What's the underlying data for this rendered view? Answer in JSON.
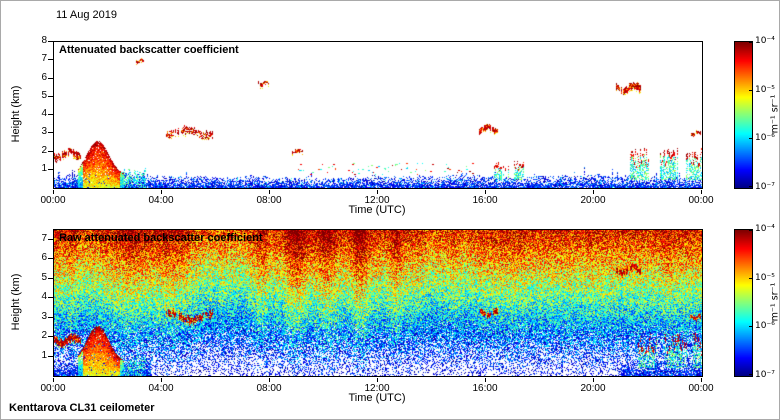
{
  "figure": {
    "date_label": "11 Aug 2019",
    "footer": "Kenttarova CL31 ceilometer",
    "xlabel": "Time (UTC)",
    "ylabel": "Height (km)",
    "x_ticks": [
      "00:00",
      "04:00",
      "08:00",
      "12:00",
      "16:00",
      "20:00",
      "00:00"
    ],
    "colorbar": {
      "unit": "m⁻¹ sr⁻¹",
      "ticks": [
        "10⁻⁴",
        "10⁻⁵",
        "10⁻⁶",
        "10⁻⁷"
      ],
      "colormap": "jet",
      "scale": "log",
      "range": [
        1e-07,
        0.0001
      ]
    }
  },
  "chart_data": [
    {
      "type": "heatmap",
      "title": "Attenuated backscatter coefficient",
      "xlabel": "Time (UTC)",
      "ylabel": "Height (km)",
      "x_range_hours": [
        0,
        24
      ],
      "ylim_km": [
        0,
        8
      ],
      "y_ticks": [
        1,
        2,
        3,
        4,
        5,
        6,
        7,
        8
      ],
      "value_unit": "m-1 sr-1",
      "value_range": [
        1e-07,
        0.0001
      ],
      "colormap": "jet",
      "background": "white below detection threshold",
      "features": [
        {
          "kind": "surface_band",
          "hours": [
            0,
            24
          ],
          "top_km_range": [
            0.45,
            0.95
          ],
          "density": 1,
          "note": "blue near-surface aerosol/noise band"
        },
        {
          "kind": "cloud",
          "hours": [
            0.0,
            1.0
          ],
          "km": [
            1.5,
            2.15
          ],
          "density": 0.75,
          "note": "low cloud streaks"
        },
        {
          "kind": "precip_column",
          "hours": [
            0.9,
            2.6
          ],
          "peak_km": 2.6,
          "note": "strong precipitation echo, yellow-red core"
        },
        {
          "kind": "green_patch",
          "hours": [
            2.45,
            3.4
          ],
          "top_km": 1.15,
          "note": "weak green returns after rain"
        },
        {
          "kind": "cloud",
          "hours": [
            3.05,
            3.35
          ],
          "km": [
            6.8,
            7.05
          ],
          "density": 0.8
        },
        {
          "kind": "cloud",
          "hours": [
            4.15,
            5.9
          ],
          "km": [
            2.7,
            3.35
          ],
          "density": 0.55,
          "note": "broken mid-level cloud"
        },
        {
          "kind": "cloud",
          "hours": [
            7.55,
            7.95
          ],
          "km": [
            5.55,
            5.85
          ],
          "density": 0.8
        },
        {
          "kind": "cloud",
          "hours": [
            8.8,
            9.25
          ],
          "km": [
            1.85,
            2.15
          ],
          "density": 0.6
        },
        {
          "kind": "fleck_field",
          "hours": [
            9.0,
            15.5
          ],
          "km": [
            0.75,
            1.35
          ],
          "count": 70,
          "note": "scattered boundary-layer flecks"
        },
        {
          "kind": "cloud",
          "hours": [
            15.75,
            16.45
          ],
          "km": [
            3.0,
            3.45
          ],
          "density": 0.85
        },
        {
          "kind": "mixed_low",
          "hours": [
            16.3,
            17.4
          ],
          "km": [
            0.75,
            1.55
          ]
        },
        {
          "kind": "cloud",
          "hours": [
            20.8,
            21.75
          ],
          "km": [
            5.15,
            5.75
          ],
          "density": 0.95,
          "note": "thick dark-red cloud"
        },
        {
          "kind": "mixed_low",
          "hours": [
            21.3,
            24.0
          ],
          "km": [
            0.75,
            2.3
          ],
          "note": "low broken cloud toward midnight"
        },
        {
          "kind": "cloud",
          "hours": [
            23.55,
            23.97
          ],
          "km": [
            2.85,
            3.15
          ],
          "density": 0.8
        }
      ]
    },
    {
      "type": "heatmap",
      "title": "Raw attenuated backscatter coefficient",
      "xlabel": "Time (UTC)",
      "ylabel": "Height (km)",
      "x_range_hours": [
        0,
        24
      ],
      "ylim_km": [
        0,
        7.5
      ],
      "y_ticks": [
        1,
        2,
        3,
        4,
        5,
        6,
        7
      ],
      "value_unit": "m-1 sr-1",
      "value_range": [
        1e-07,
        0.0001
      ],
      "colormap": "jet",
      "background": "dense speckle noise increasing with height (blue low, red aloft)",
      "noise": {
        "base_offset": -0.02,
        "gain_per_ynorm": 0.92,
        "jitter": 0.22,
        "white_prob_surface": 0.5
      },
      "streak_window_hours": [
        7.5,
        13.5
      ],
      "features": [
        {
          "kind": "surface_band",
          "hours": [
            0,
            3.6
          ],
          "top_km_range": [
            0.5,
            0.95
          ],
          "density": 0.95
        },
        {
          "kind": "precip_column",
          "hours": [
            0.9,
            2.6
          ],
          "peak_km": 2.6
        },
        {
          "kind": "green_patch",
          "hours": [
            2.45,
            3.4
          ],
          "top_km": 1.15
        },
        {
          "kind": "cloud",
          "hours": [
            0.0,
            1.0
          ],
          "km": [
            1.5,
            2.15
          ],
          "density": 0.8
        },
        {
          "kind": "cloud",
          "hours": [
            4.15,
            5.9
          ],
          "km": [
            2.7,
            3.35
          ],
          "density": 0.6
        },
        {
          "kind": "cloud",
          "hours": [
            15.75,
            16.45
          ],
          "km": [
            3.0,
            3.45
          ],
          "density": 0.85
        },
        {
          "kind": "cloud",
          "hours": [
            20.8,
            21.75
          ],
          "km": [
            5.15,
            5.75
          ],
          "density": 0.95
        },
        {
          "kind": "surface_band",
          "hours": [
            21.0,
            24.0
          ],
          "top_km_range": [
            0.5,
            0.9
          ],
          "density": 0.9
        },
        {
          "kind": "mixed_low",
          "hours": [
            21.3,
            24.0
          ],
          "km": [
            0.75,
            2.3
          ]
        },
        {
          "kind": "cloud",
          "hours": [
            23.55,
            23.97
          ],
          "km": [
            2.85,
            3.15
          ],
          "density": 0.8
        }
      ]
    }
  ]
}
